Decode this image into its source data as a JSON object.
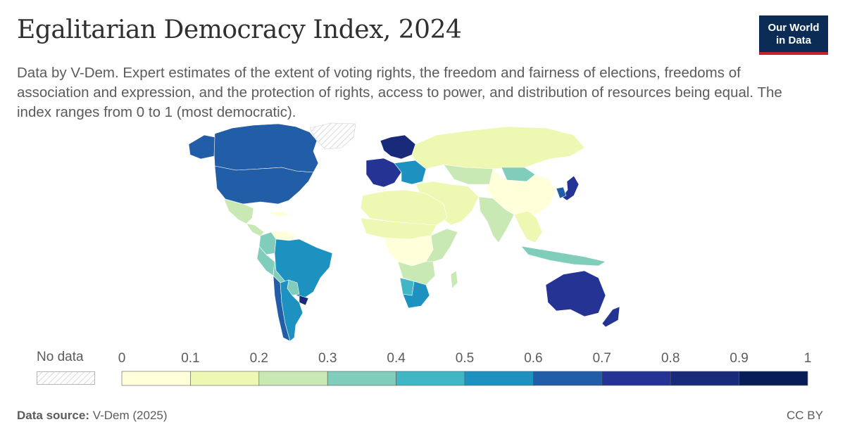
{
  "header": {
    "title": "Egalitarian Democracy Index, 2024",
    "subtitle": "Data by V-Dem. Expert estimates of the extent of voting rights, the freedom and fairness of elections, freedoms of association and expression, and the protection of rights, access to power, and distribution of resources being equal. The index ranges from 0 to 1 (most democratic).",
    "logo_line1": "Our World",
    "logo_line2": "in Data"
  },
  "legend": {
    "no_data_label": "No data",
    "ticks": [
      "0",
      "0.1",
      "0.2",
      "0.3",
      "0.4",
      "0.5",
      "0.6",
      "0.7",
      "0.8",
      "0.9",
      "1"
    ],
    "bins": [
      {
        "range": [
          0.0,
          0.1
        ],
        "color": "#ffffd9"
      },
      {
        "range": [
          0.1,
          0.2
        ],
        "color": "#eef8b3"
      },
      {
        "range": [
          0.2,
          0.3
        ],
        "color": "#c8e9b4"
      },
      {
        "range": [
          0.3,
          0.4
        ],
        "color": "#81cdbb"
      },
      {
        "range": [
          0.4,
          0.5
        ],
        "color": "#41b6c4"
      },
      {
        "range": [
          0.5,
          0.6
        ],
        "color": "#1d91c0"
      },
      {
        "range": [
          0.6,
          0.7
        ],
        "color": "#225da8"
      },
      {
        "range": [
          0.7,
          0.8
        ],
        "color": "#253494"
      },
      {
        "range": [
          0.8,
          0.9
        ],
        "color": "#1a2a7a"
      },
      {
        "range": [
          0.9,
          1.0
        ],
        "color": "#081d58"
      }
    ]
  },
  "map": {
    "regions": [
      {
        "name": "Canada",
        "bin": 6
      },
      {
        "name": "United States",
        "bin": 6
      },
      {
        "name": "Greenland",
        "bin": -1
      },
      {
        "name": "Alaska",
        "bin": 6
      },
      {
        "name": "Mexico",
        "bin": 2
      },
      {
        "name": "Central America",
        "bin": 2
      },
      {
        "name": "Cuba",
        "bin": 0
      },
      {
        "name": "Venezuela",
        "bin": 0
      },
      {
        "name": "Colombia",
        "bin": 3
      },
      {
        "name": "Peru",
        "bin": 3
      },
      {
        "name": "Bolivia",
        "bin": 3
      },
      {
        "name": "Brazil",
        "bin": 5
      },
      {
        "name": "Paraguay",
        "bin": 3
      },
      {
        "name": "Uruguay",
        "bin": 8
      },
      {
        "name": "Chile",
        "bin": 6
      },
      {
        "name": "Argentina",
        "bin": 5
      },
      {
        "name": "Western Europe",
        "bin": 7
      },
      {
        "name": "Nordic countries",
        "bin": 8
      },
      {
        "name": "Eastern Europe",
        "bin": 5
      },
      {
        "name": "Russia",
        "bin": 1
      },
      {
        "name": "Kazakhstan",
        "bin": 2
      },
      {
        "name": "Mongolia",
        "bin": 3
      },
      {
        "name": "China",
        "bin": 0
      },
      {
        "name": "Middle East",
        "bin": 1
      },
      {
        "name": "India",
        "bin": 2
      },
      {
        "name": "Southeast Asia",
        "bin": 1
      },
      {
        "name": "Indonesia",
        "bin": 3
      },
      {
        "name": "Japan",
        "bin": 7
      },
      {
        "name": "South Korea",
        "bin": 6
      },
      {
        "name": "North Africa",
        "bin": 1
      },
      {
        "name": "Sahel",
        "bin": 1
      },
      {
        "name": "Central Africa",
        "bin": 0
      },
      {
        "name": "East Africa",
        "bin": 2
      },
      {
        "name": "Southern Africa",
        "bin": 2
      },
      {
        "name": "South Africa",
        "bin": 5
      },
      {
        "name": "Namibia",
        "bin": 4
      },
      {
        "name": "Madagascar",
        "bin": 2
      },
      {
        "name": "Australia",
        "bin": 7
      },
      {
        "name": "New Zealand",
        "bin": 7
      }
    ]
  },
  "footer": {
    "source_label": "Data source:",
    "source_value": "V-Dem (2025)",
    "license": "CC BY"
  }
}
